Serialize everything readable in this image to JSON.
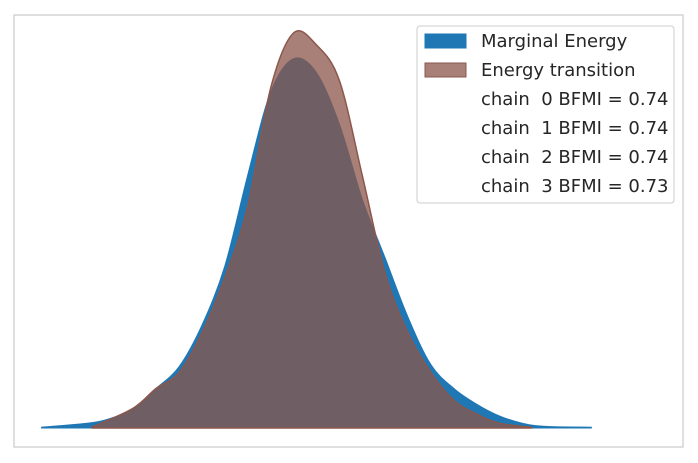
{
  "chart_data": {
    "type": "area",
    "title": "",
    "xlabel": "",
    "ylabel": "",
    "grid": false,
    "legend_position": "top-right",
    "series": [
      {
        "name": "Marginal Energy",
        "color": "#1f77b4",
        "x": [
          -6.0,
          -5.0,
          -4.5,
          -4.0,
          -3.5,
          -3.0,
          -2.5,
          -2.0,
          -1.5,
          -1.0,
          -0.5,
          0.0,
          0.5,
          1.0,
          1.5,
          2.0,
          2.5,
          3.0,
          3.5,
          4.0,
          4.5,
          5.0,
          6.0
        ],
        "y": [
          0.002,
          0.012,
          0.024,
          0.05,
          0.1,
          0.155,
          0.26,
          0.41,
          0.64,
          0.85,
          0.935,
          0.9,
          0.77,
          0.58,
          0.43,
          0.28,
          0.16,
          0.1,
          0.06,
          0.03,
          0.012,
          0.004,
          0.002
        ]
      },
      {
        "name": "Energy transition",
        "color": "#8c564b",
        "x": [
          -4.9,
          -4.0,
          -3.5,
          -3.0,
          -2.5,
          -2.0,
          -1.5,
          -1.0,
          -0.5,
          0.0,
          0.5,
          1.0,
          1.5,
          2.0,
          2.5,
          3.0,
          3.5,
          4.0,
          4.7
        ],
        "y": [
          0.002,
          0.05,
          0.1,
          0.14,
          0.24,
          0.38,
          0.56,
          0.86,
          1.0,
          0.97,
          0.88,
          0.64,
          0.39,
          0.24,
          0.14,
          0.07,
          0.035,
          0.012,
          0.002
        ]
      }
    ],
    "legend_entries": [
      {
        "label": "Marginal Energy",
        "swatch": true,
        "color": "#1f77b4"
      },
      {
        "label": "Energy transition",
        "swatch": true,
        "color": "#8c564b"
      },
      {
        "label": "chain  0 BFMI = 0.74",
        "swatch": false
      },
      {
        "label": "chain  1 BFMI = 0.74",
        "swatch": false
      },
      {
        "label": "chain  2 BFMI = 0.74",
        "swatch": false
      },
      {
        "label": "chain  3 BFMI = 0.73",
        "swatch": false
      }
    ],
    "xlim": [
      -6.6,
      8.0
    ],
    "ylim": [
      0.0,
      1.08
    ]
  }
}
